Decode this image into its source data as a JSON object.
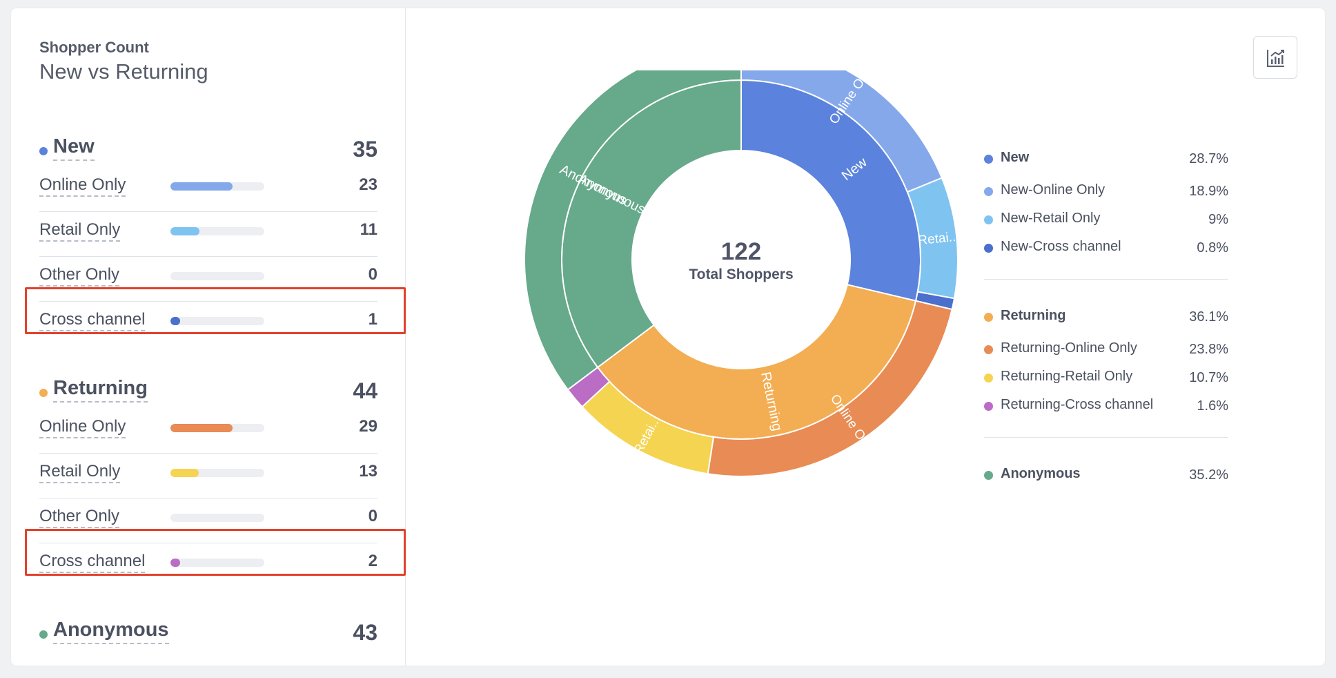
{
  "header": {
    "eyebrow": "Shopper Count",
    "title": "New vs Returning"
  },
  "groups": [
    {
      "label": "New",
      "total": "35",
      "color": "#5b83dd",
      "rows": [
        {
          "label": "Online Only",
          "value": "23",
          "fraction": 0.66,
          "color": "#84a8ea"
        },
        {
          "label": "Retail Only",
          "value": "11",
          "fraction": 0.31,
          "color": "#7fc3f0"
        },
        {
          "label": "Other Only",
          "value": "0",
          "fraction": 0,
          "color": "#7fc3f0"
        },
        {
          "label": "Cross channel",
          "value": "1",
          "fraction": 0.1,
          "color": "#4a6fcc"
        }
      ]
    },
    {
      "label": "Returning",
      "total": "44",
      "color": "#f3ad52",
      "rows": [
        {
          "label": "Online Only",
          "value": "29",
          "fraction": 0.66,
          "color": "#e88b54"
        },
        {
          "label": "Retail Only",
          "value": "13",
          "fraction": 0.3,
          "color": "#f5d452"
        },
        {
          "label": "Other Only",
          "value": "0",
          "fraction": 0,
          "color": "#f5d452"
        },
        {
          "label": "Cross channel",
          "value": "2",
          "fraction": 0.1,
          "color": "#bb6cc4"
        }
      ]
    },
    {
      "label": "Anonymous",
      "total": "43",
      "color": "#66a98b",
      "rows": []
    }
  ],
  "export_icon": "chart-export-icon",
  "chart_data": {
    "type": "pie",
    "center_value": "122",
    "center_label": "Total Shoppers",
    "total": 122,
    "inner": [
      {
        "label": "New",
        "value": 35,
        "color": "#5b83dd"
      },
      {
        "label": "Returning",
        "value": 44,
        "color": "#f3ad52"
      },
      {
        "label": "Anonymous",
        "value": 43,
        "color": "#66a98b"
      }
    ],
    "outer": [
      {
        "label": "Online Only",
        "value": 23,
        "color": "#84a8ea"
      },
      {
        "label": "Retai...",
        "value": 11,
        "color": "#7fc3f0"
      },
      {
        "label": "",
        "value": 1,
        "color": "#4a6fcc"
      },
      {
        "label": "Online Only",
        "value": 29,
        "color": "#e88b54"
      },
      {
        "label": "Retai...",
        "value": 13,
        "color": "#f5d452"
      },
      {
        "label": "",
        "value": 2,
        "color": "#bb6cc4"
      },
      {
        "label": "",
        "value": 43,
        "color": "#66a98b"
      }
    ],
    "legend": [
      [
        {
          "label": "New",
          "value": "28.7%",
          "color": "#5b83dd",
          "bold": true
        },
        {
          "label": "New-Online Only",
          "value": "18.9%",
          "color": "#84a8ea"
        },
        {
          "label": "New-Retail Only",
          "value": "9%",
          "color": "#7fc3f0"
        },
        {
          "label": "New-Cross channel",
          "value": "0.8%",
          "color": "#4a6fcc"
        }
      ],
      [
        {
          "label": "Returning",
          "value": "36.1%",
          "color": "#f3ad52",
          "bold": true
        },
        {
          "label": "Returning-Online Only",
          "value": "23.8%",
          "color": "#e88b54"
        },
        {
          "label": "Returning-Retail Only",
          "value": "10.7%",
          "color": "#f5d452"
        },
        {
          "label": "Returning-Cross channel",
          "value": "1.6%",
          "color": "#bb6cc4"
        }
      ],
      [
        {
          "label": "Anonymous",
          "value": "35.2%",
          "color": "#66a98b",
          "bold": true
        }
      ]
    ]
  }
}
